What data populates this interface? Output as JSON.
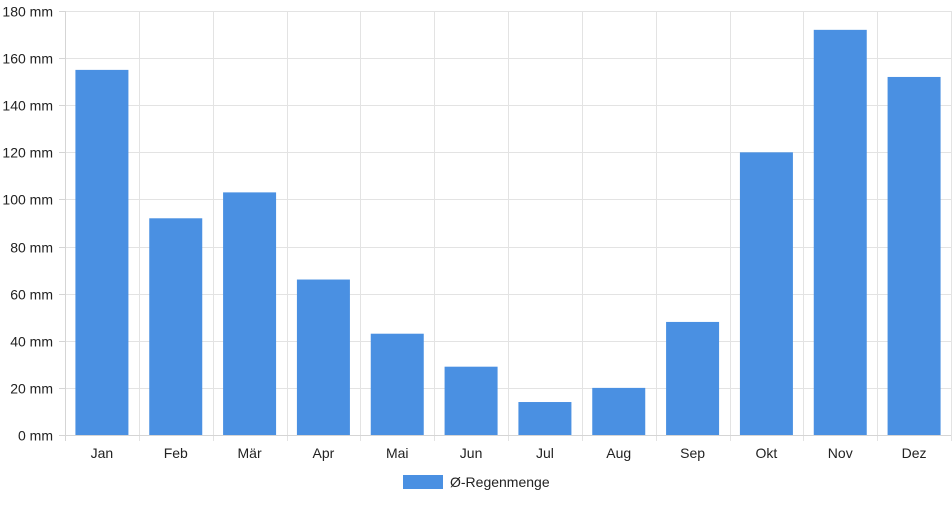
{
  "chart_data": {
    "type": "bar",
    "categories": [
      "Jan",
      "Feb",
      "Mär",
      "Apr",
      "Mai",
      "Jun",
      "Jul",
      "Aug",
      "Sep",
      "Okt",
      "Nov",
      "Dez"
    ],
    "series": [
      {
        "name": "Ø-Regenmenge",
        "values": [
          155,
          92,
          103,
          66,
          43,
          29,
          14,
          20,
          48,
          120,
          172,
          152
        ],
        "color": "#4a90e2"
      }
    ],
    "y_unit": "mm",
    "ylim": [
      0,
      180
    ],
    "yticks": [
      0,
      20,
      40,
      60,
      80,
      100,
      120,
      140,
      160,
      180
    ],
    "grid": true,
    "legend_position": "bottom-center",
    "title": "",
    "xlabel": "",
    "ylabel": ""
  }
}
